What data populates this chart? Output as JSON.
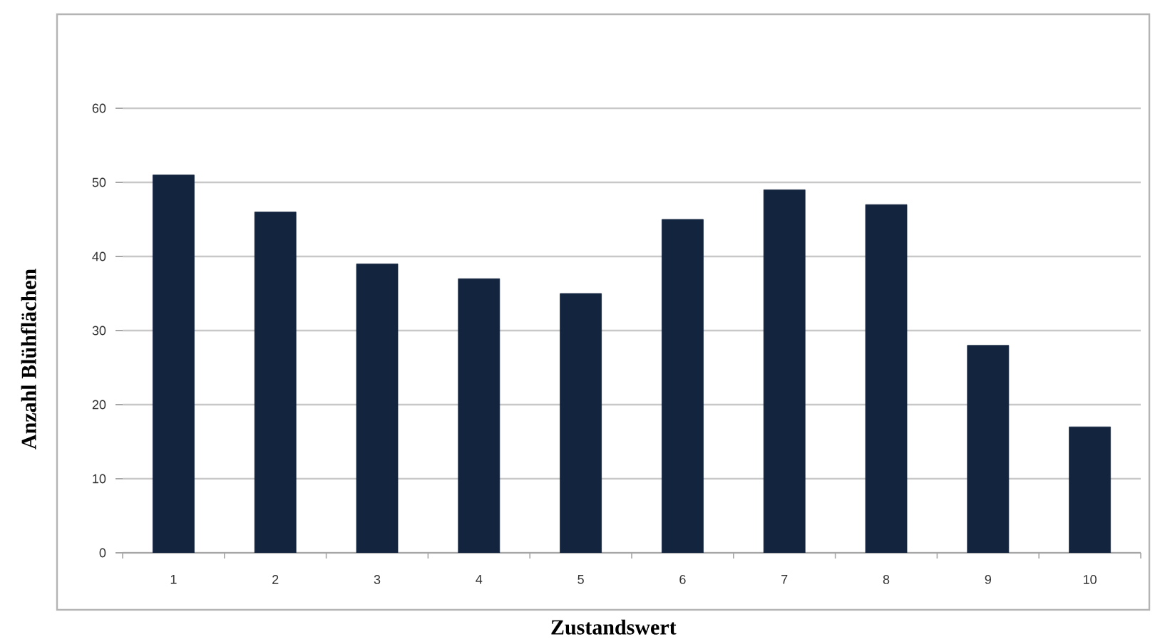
{
  "chart_data": {
    "type": "bar",
    "xlabel": "Zustandswert",
    "ylabel": "Anzahl Blühflächen",
    "categories": [
      "1",
      "2",
      "3",
      "4",
      "5",
      "6",
      "7",
      "8",
      "9",
      "10"
    ],
    "values": [
      51,
      46,
      39,
      37,
      35,
      45,
      49,
      47,
      28,
      17
    ],
    "color": "#13243f",
    "ylim": [
      0,
      60
    ],
    "yticks": [
      0,
      10,
      20,
      30,
      40,
      50,
      60
    ],
    "grid": "y"
  }
}
